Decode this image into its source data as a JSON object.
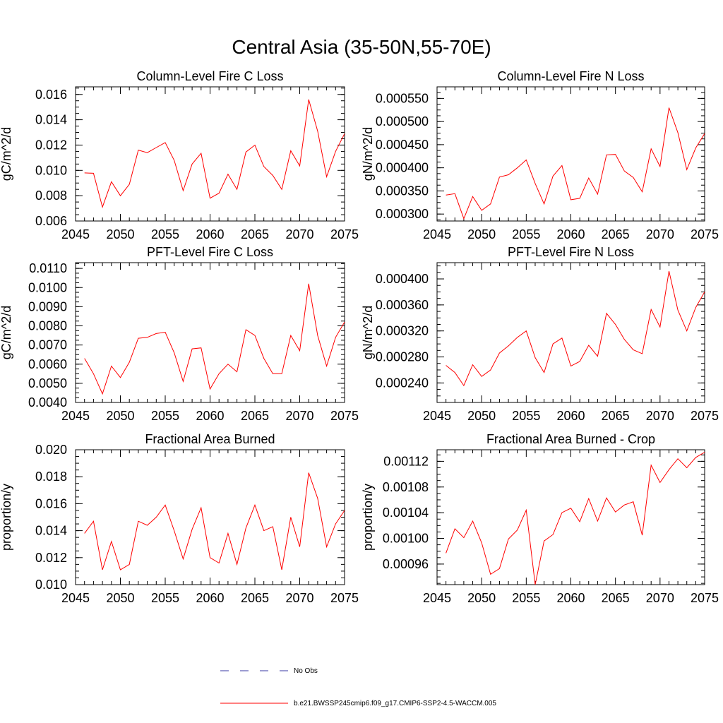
{
  "figure_title": "Central Asia (35-50N,55-70E)",
  "legend": {
    "obs_label": "No Obs",
    "model_label": "b.e21.BWSSP245cmip6.f09_g17.CMIP6-SSP2-4.5-WACCM.005",
    "obs_color": "#3a3aa6",
    "model_color": "#ff0000"
  },
  "x_years": [
    2046,
    2047,
    2048,
    2049,
    2050,
    2051,
    2052,
    2053,
    2054,
    2055,
    2056,
    2057,
    2058,
    2059,
    2060,
    2061,
    2062,
    2063,
    2064,
    2065,
    2066,
    2067,
    2068,
    2069,
    2070,
    2071,
    2072,
    2073,
    2074,
    2075
  ],
  "chart_data": [
    {
      "type": "line",
      "title": "Column-Level Fire C Loss",
      "ylabel": "gC/m^2/d",
      "xlim": [
        2045,
        2075
      ],
      "ylim": [
        0.006,
        0.0166
      ],
      "xticks": [
        "2045",
        "2050",
        "2055",
        "2060",
        "2065",
        "2070",
        "2075"
      ],
      "yticks": [
        {
          "value": 0.006,
          "label": "0.006"
        },
        {
          "value": 0.008,
          "label": "0.008"
        },
        {
          "value": 0.01,
          "label": "0.010"
        },
        {
          "value": 0.012,
          "label": "0.012"
        },
        {
          "value": 0.014,
          "label": "0.014"
        },
        {
          "value": 0.016,
          "label": "0.016"
        }
      ],
      "series": [
        {
          "values": [
            0.0098,
            0.00977,
            0.0071,
            0.0091,
            0.008,
            0.0089,
            0.0116,
            0.0114,
            0.0118,
            0.0122,
            0.0108,
            0.0084,
            0.0105,
            0.01135,
            0.0078,
            0.0082,
            0.0097,
            0.0085,
            0.01145,
            0.012,
            0.0103,
            0.0096,
            0.0085,
            0.01155,
            0.01035,
            0.0156,
            0.0131,
            0.0095,
            0.0115,
            0.0129
          ]
        }
      ]
    },
    {
      "type": "line",
      "title": "Column-Level Fire N Loss",
      "ylabel": "gN/m^2/d",
      "xlim": [
        2045,
        2075
      ],
      "ylim": [
        0.000285,
        0.000575
      ],
      "xticks": [
        "2045",
        "2050",
        "2055",
        "2060",
        "2065",
        "2070",
        "2075"
      ],
      "yticks": [
        {
          "value": 0.0003,
          "label": "0.000300"
        },
        {
          "value": 0.00035,
          "label": "0.000350"
        },
        {
          "value": 0.0004,
          "label": "0.000400"
        },
        {
          "value": 0.00045,
          "label": "0.000450"
        },
        {
          "value": 0.0005,
          "label": "0.000500"
        },
        {
          "value": 0.00055,
          "label": "0.000550"
        }
      ],
      "series": [
        {
          "values": [
            0.000341,
            0.000344,
            0.00029,
            0.000338,
            0.000308,
            0.000322,
            0.00038,
            0.000385,
            0.0004,
            0.000417,
            0.000366,
            0.000322,
            0.000382,
            0.000405,
            0.000331,
            0.000334,
            0.000378,
            0.000343,
            0.000428,
            0.000429,
            0.000393,
            0.000379,
            0.000348,
            0.000441,
            0.000403,
            0.00053,
            0.000476,
            0.000396,
            0.000443,
            0.000474
          ]
        }
      ]
    },
    {
      "type": "line",
      "title": "PFT-Level Fire C Loss",
      "ylabel": "gC/m^2/d",
      "xlim": [
        2045,
        2075
      ],
      "ylim": [
        0.004,
        0.0113
      ],
      "xticks": [
        "2045",
        "2050",
        "2055",
        "2060",
        "2065",
        "2070",
        "2075"
      ],
      "yticks": [
        {
          "value": 0.004,
          "label": "0.0040"
        },
        {
          "value": 0.005,
          "label": "0.0050"
        },
        {
          "value": 0.006,
          "label": "0.0060"
        },
        {
          "value": 0.007,
          "label": "0.0070"
        },
        {
          "value": 0.008,
          "label": "0.0080"
        },
        {
          "value": 0.009,
          "label": "0.0090"
        },
        {
          "value": 0.01,
          "label": "0.0100"
        },
        {
          "value": 0.011,
          "label": "0.0110"
        }
      ],
      "series": [
        {
          "values": [
            0.0063,
            0.0055,
            0.00445,
            0.0059,
            0.0053,
            0.0061,
            0.00735,
            0.0074,
            0.0076,
            0.00767,
            0.0066,
            0.0051,
            0.0068,
            0.00685,
            0.0047,
            0.0055,
            0.006,
            0.0056,
            0.0078,
            0.0075,
            0.0063,
            0.0055,
            0.0055,
            0.0075,
            0.0067,
            0.0102,
            0.0075,
            0.0059,
            0.0074,
            0.0082
          ]
        }
      ]
    },
    {
      "type": "line",
      "title": "PFT-Level Fire N Loss",
      "ylabel": "gN/m^2/d",
      "xlim": [
        2045,
        2075
      ],
      "ylim": [
        0.00021,
        0.000425
      ],
      "xticks": [
        "2045",
        "2050",
        "2055",
        "2060",
        "2065",
        "2070",
        "2075"
      ],
      "yticks": [
        {
          "value": 0.00024,
          "label": "0.000240"
        },
        {
          "value": 0.00028,
          "label": "0.000280"
        },
        {
          "value": 0.00032,
          "label": "0.000320"
        },
        {
          "value": 0.00036,
          "label": "0.000360"
        },
        {
          "value": 0.0004,
          "label": "0.000400"
        }
      ],
      "series": [
        {
          "values": [
            0.000267,
            0.000256,
            0.000236,
            0.000268,
            0.00025,
            0.00026,
            0.000286,
            0.000297,
            0.00031,
            0.00032,
            0.000279,
            0.000256,
            0.0003,
            0.000309,
            0.000266,
            0.000273,
            0.000298,
            0.000281,
            0.000347,
            0.00033,
            0.000307,
            0.000291,
            0.000285,
            0.000353,
            0.000326,
            0.000412,
            0.000352,
            0.00032,
            0.000356,
            0.00038
          ]
        }
      ]
    },
    {
      "type": "line",
      "title": "Fractional Area Burned",
      "ylabel": "proportion/y",
      "xlim": [
        2045,
        2075
      ],
      "ylim": [
        0.01,
        0.02
      ],
      "xticks": [
        "2045",
        "2050",
        "2055",
        "2060",
        "2065",
        "2070",
        "2075"
      ],
      "yticks": [
        {
          "value": 0.01,
          "label": "0.010"
        },
        {
          "value": 0.012,
          "label": "0.012"
        },
        {
          "value": 0.014,
          "label": "0.014"
        },
        {
          "value": 0.016,
          "label": "0.016"
        },
        {
          "value": 0.018,
          "label": "0.018"
        },
        {
          "value": 0.02,
          "label": "0.020"
        }
      ],
      "series": [
        {
          "values": [
            0.0138,
            0.0147,
            0.0111,
            0.0132,
            0.0111,
            0.0115,
            0.0147,
            0.0144,
            0.015,
            0.0159,
            0.014,
            0.0119,
            0.0141,
            0.0157,
            0.012,
            0.0116,
            0.0138,
            0.0115,
            0.0142,
            0.0159,
            0.014,
            0.0143,
            0.0111,
            0.015,
            0.0128,
            0.0183,
            0.0164,
            0.0128,
            0.0145,
            0.0155
          ]
        }
      ]
    },
    {
      "type": "line",
      "title": "Fractional Area Burned - Crop",
      "ylabel": "proportion/y",
      "xlim": [
        2045,
        2075
      ],
      "ylim": [
        0.000928,
        0.001138
      ],
      "xticks": [
        "2045",
        "2050",
        "2055",
        "2060",
        "2065",
        "2070",
        "2075"
      ],
      "yticks": [
        {
          "value": 0.00096,
          "label": "0.00096"
        },
        {
          "value": 0.001,
          "label": "0.00100"
        },
        {
          "value": 0.00104,
          "label": "0.00104"
        },
        {
          "value": 0.00108,
          "label": "0.00108"
        },
        {
          "value": 0.00112,
          "label": "0.00112"
        }
      ],
      "series": [
        {
          "values": [
            0.000977,
            0.001015,
            0.001001,
            0.001027,
            0.000993,
            0.000944,
            0.000953,
            0.000999,
            0.001013,
            0.001044,
            0.000928,
            0.000996,
            0.001006,
            0.00104,
            0.001047,
            0.001026,
            0.001062,
            0.001027,
            0.001063,
            0.001041,
            0.001052,
            0.001057,
            0.001005,
            0.001114,
            0.001087,
            0.001107,
            0.001124,
            0.00111,
            0.001126,
            0.001134
          ]
        }
      ]
    }
  ]
}
